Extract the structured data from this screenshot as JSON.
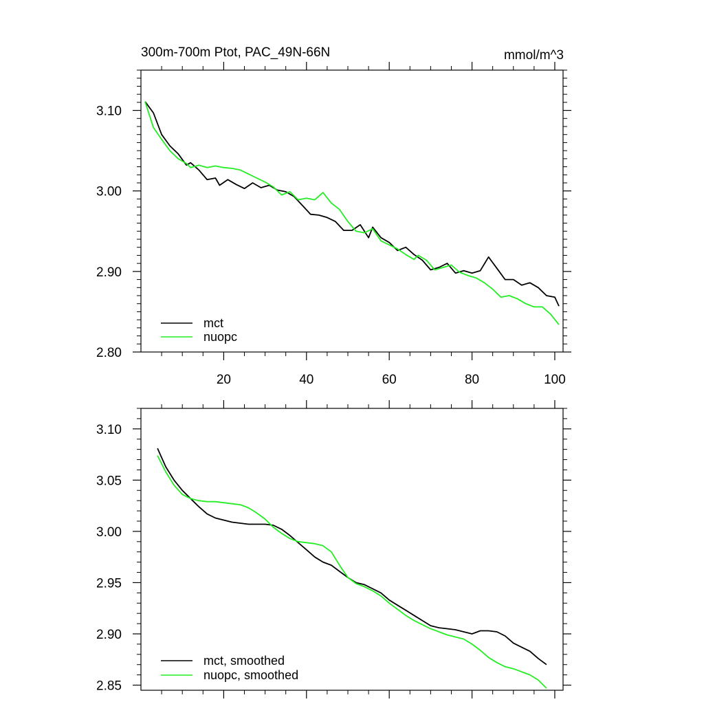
{
  "chart_data": [
    {
      "type": "line",
      "title": "300m-700m Ptot, PAC_49N-66N",
      "units": "mmol/m^3",
      "xlim": [
        0,
        102
      ],
      "ylim": [
        2.8,
        3.15
      ],
      "xticks": [
        20,
        40,
        60,
        80,
        100
      ],
      "xtick_labels": [
        "20",
        "40",
        "60",
        "80",
        "100"
      ],
      "yticks": [
        2.8,
        2.9,
        3.0,
        3.1
      ],
      "ytick_labels": [
        "2.80",
        "2.90",
        "3.00",
        "3.10"
      ],
      "legend_position": "bottom-left",
      "series": [
        {
          "name": "mct",
          "color": "#000000",
          "points": [
            [
              1,
              3.111
            ],
            [
              3,
              3.097
            ],
            [
              5,
              3.07
            ],
            [
              7,
              3.056
            ],
            [
              9,
              3.046
            ],
            [
              11,
              3.032
            ],
            [
              12,
              3.035
            ],
            [
              14,
              3.026
            ],
            [
              16,
              3.014
            ],
            [
              18,
              3.016
            ],
            [
              19,
              3.007
            ],
            [
              21,
              3.014
            ],
            [
              23,
              3.008
            ],
            [
              25,
              3.003
            ],
            [
              27,
              3.01
            ],
            [
              29,
              3.004
            ],
            [
              31,
              3.007
            ],
            [
              33,
              3.001
            ],
            [
              35,
              2.999
            ],
            [
              37,
              2.993
            ],
            [
              39,
              2.982
            ],
            [
              41,
              2.971
            ],
            [
              43,
              2.97
            ],
            [
              45,
              2.967
            ],
            [
              47,
              2.962
            ],
            [
              49,
              2.951
            ],
            [
              51,
              2.951
            ],
            [
              53,
              2.958
            ],
            [
              55,
              2.942
            ],
            [
              56,
              2.955
            ],
            [
              58,
              2.942
            ],
            [
              60,
              2.936
            ],
            [
              62,
              2.926
            ],
            [
              64,
              2.93
            ],
            [
              66,
              2.921
            ],
            [
              68,
              2.914
            ],
            [
              70,
              2.902
            ],
            [
              72,
              2.905
            ],
            [
              74,
              2.91
            ],
            [
              76,
              2.898
            ],
            [
              78,
              2.901
            ],
            [
              80,
              2.898
            ],
            [
              82,
              2.901
            ],
            [
              84,
              2.918
            ],
            [
              86,
              2.904
            ],
            [
              88,
              2.89
            ],
            [
              90,
              2.89
            ],
            [
              92,
              2.883
            ],
            [
              94,
              2.886
            ],
            [
              96,
              2.88
            ],
            [
              98,
              2.87
            ],
            [
              100,
              2.868
            ],
            [
              101,
              2.857
            ]
          ]
        },
        {
          "name": "nuopc",
          "color": "#22ee22",
          "points": [
            [
              1,
              3.111
            ],
            [
              3,
              3.079
            ],
            [
              5,
              3.064
            ],
            [
              7,
              3.05
            ],
            [
              9,
              3.04
            ],
            [
              11,
              3.034
            ],
            [
              12,
              3.029
            ],
            [
              14,
              3.032
            ],
            [
              16,
              3.029
            ],
            [
              18,
              3.031
            ],
            [
              20,
              3.029
            ],
            [
              22,
              3.028
            ],
            [
              24,
              3.026
            ],
            [
              26,
              3.021
            ],
            [
              28,
              3.016
            ],
            [
              30,
              3.011
            ],
            [
              32,
              3.005
            ],
            [
              34,
              2.995
            ],
            [
              36,
              2.999
            ],
            [
              38,
              2.989
            ],
            [
              40,
              2.991
            ],
            [
              42,
              2.989
            ],
            [
              44,
              2.998
            ],
            [
              46,
              2.985
            ],
            [
              48,
              2.977
            ],
            [
              50,
              2.962
            ],
            [
              52,
              2.95
            ],
            [
              54,
              2.948
            ],
            [
              56,
              2.953
            ],
            [
              58,
              2.938
            ],
            [
              60,
              2.933
            ],
            [
              62,
              2.928
            ],
            [
              64,
              2.921
            ],
            [
              66,
              2.915
            ],
            [
              67,
              2.92
            ],
            [
              69,
              2.914
            ],
            [
              71,
              2.902
            ],
            [
              73,
              2.905
            ],
            [
              75,
              2.908
            ],
            [
              77,
              2.899
            ],
            [
              79,
              2.895
            ],
            [
              81,
              2.892
            ],
            [
              83,
              2.886
            ],
            [
              85,
              2.878
            ],
            [
              87,
              2.868
            ],
            [
              89,
              2.87
            ],
            [
              91,
              2.866
            ],
            [
              93,
              2.86
            ],
            [
              95,
              2.856
            ],
            [
              97,
              2.856
            ],
            [
              99,
              2.847
            ],
            [
              101,
              2.834
            ]
          ]
        }
      ]
    },
    {
      "type": "line",
      "title": "",
      "xlim": [
        0,
        102
      ],
      "ylim": [
        2.845,
        3.12
      ],
      "xticks": [
        20,
        40,
        60,
        80,
        100
      ],
      "yticks": [
        2.85,
        2.9,
        2.95,
        3.0,
        3.05,
        3.1
      ],
      "ytick_labels": [
        "2.85",
        "2.90",
        "2.95",
        "3.00",
        "3.05",
        "3.10"
      ],
      "legend_position": "bottom-left",
      "series": [
        {
          "name": "mct, smoothed",
          "color": "#000000",
          "points": [
            [
              4,
              3.081
            ],
            [
              6,
              3.063
            ],
            [
              8,
              3.05
            ],
            [
              10,
              3.04
            ],
            [
              12,
              3.032
            ],
            [
              14,
              3.024
            ],
            [
              16,
              3.017
            ],
            [
              18,
              3.013
            ],
            [
              20,
              3.011
            ],
            [
              22,
              3.009
            ],
            [
              24,
              3.008
            ],
            [
              26,
              3.007
            ],
            [
              28,
              3.007
            ],
            [
              30,
              3.007
            ],
            [
              32,
              3.006
            ],
            [
              34,
              3.002
            ],
            [
              36,
              2.996
            ],
            [
              38,
              2.989
            ],
            [
              40,
              2.982
            ],
            [
              42,
              2.975
            ],
            [
              44,
              2.97
            ],
            [
              46,
              2.967
            ],
            [
              48,
              2.961
            ],
            [
              50,
              2.955
            ],
            [
              52,
              2.95
            ],
            [
              54,
              2.948
            ],
            [
              56,
              2.944
            ],
            [
              58,
              2.94
            ],
            [
              60,
              2.933
            ],
            [
              62,
              2.928
            ],
            [
              64,
              2.923
            ],
            [
              66,
              2.918
            ],
            [
              68,
              2.913
            ],
            [
              70,
              2.908
            ],
            [
              72,
              2.906
            ],
            [
              74,
              2.905
            ],
            [
              76,
              2.904
            ],
            [
              78,
              2.902
            ],
            [
              80,
              2.9
            ],
            [
              82,
              2.903
            ],
            [
              84,
              2.903
            ],
            [
              86,
              2.902
            ],
            [
              88,
              2.898
            ],
            [
              90,
              2.891
            ],
            [
              92,
              2.887
            ],
            [
              94,
              2.883
            ],
            [
              96,
              2.876
            ],
            [
              98,
              2.87
            ]
          ]
        },
        {
          "name": "nuopc, smoothed",
          "color": "#22ee22",
          "points": [
            [
              4,
              3.074
            ],
            [
              6,
              3.058
            ],
            [
              8,
              3.045
            ],
            [
              10,
              3.036
            ],
            [
              12,
              3.032
            ],
            [
              14,
              3.03
            ],
            [
              16,
              3.029
            ],
            [
              18,
              3.029
            ],
            [
              20,
              3.028
            ],
            [
              22,
              3.027
            ],
            [
              24,
              3.026
            ],
            [
              26,
              3.023
            ],
            [
              28,
              3.018
            ],
            [
              30,
              3.012
            ],
            [
              32,
              3.004
            ],
            [
              34,
              2.998
            ],
            [
              36,
              2.993
            ],
            [
              38,
              2.99
            ],
            [
              40,
              2.989
            ],
            [
              42,
              2.988
            ],
            [
              44,
              2.986
            ],
            [
              46,
              2.98
            ],
            [
              48,
              2.967
            ],
            [
              50,
              2.955
            ],
            [
              52,
              2.949
            ],
            [
              54,
              2.946
            ],
            [
              56,
              2.942
            ],
            [
              58,
              2.937
            ],
            [
              60,
              2.93
            ],
            [
              62,
              2.924
            ],
            [
              64,
              2.918
            ],
            [
              66,
              2.913
            ],
            [
              68,
              2.909
            ],
            [
              70,
              2.905
            ],
            [
              72,
              2.902
            ],
            [
              74,
              2.899
            ],
            [
              76,
              2.897
            ],
            [
              78,
              2.895
            ],
            [
              80,
              2.89
            ],
            [
              82,
              2.884
            ],
            [
              84,
              2.877
            ],
            [
              86,
              2.872
            ],
            [
              88,
              2.868
            ],
            [
              90,
              2.866
            ],
            [
              92,
              2.863
            ],
            [
              94,
              2.86
            ],
            [
              96,
              2.855
            ],
            [
              98,
              2.847
            ]
          ]
        }
      ]
    }
  ]
}
